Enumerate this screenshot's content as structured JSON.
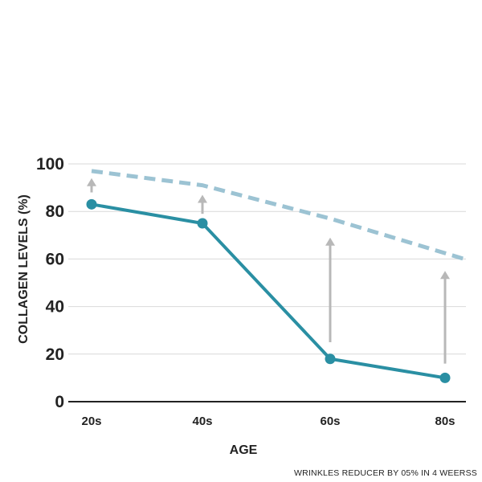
{
  "chart_data": {
    "type": "line",
    "ylabel": "COLLAGEN LEVELS (%)",
    "xlabel": "AGE",
    "categories": [
      "20s",
      "40s",
      "60s",
      "80s"
    ],
    "yticks": [
      0,
      20,
      40,
      60,
      80,
      100
    ],
    "ylim": [
      0,
      100
    ],
    "grid": true,
    "series": [
      {
        "values": [
          83,
          75,
          18,
          10
        ],
        "style": "solid",
        "color": "#2a8fa3"
      },
      {
        "values": [
          97,
          91,
          77,
          60
        ],
        "style": "dashed",
        "color": "#9cc3d3"
      }
    ],
    "arrows": [
      {
        "category": "20s",
        "from": 88,
        "to": 94
      },
      {
        "category": "40s",
        "from": 79,
        "to": 87
      },
      {
        "category": "60s",
        "from": 25,
        "to": 69
      },
      {
        "category": "80s",
        "from": 16,
        "to": 55
      }
    ],
    "annotation": "WRINKLES REDUCER BY 05% IN 4 WEERSS",
    "colors": {
      "grid": "#d9d9d9",
      "axis": "#222222",
      "arrow": "#b8b8b8"
    }
  }
}
